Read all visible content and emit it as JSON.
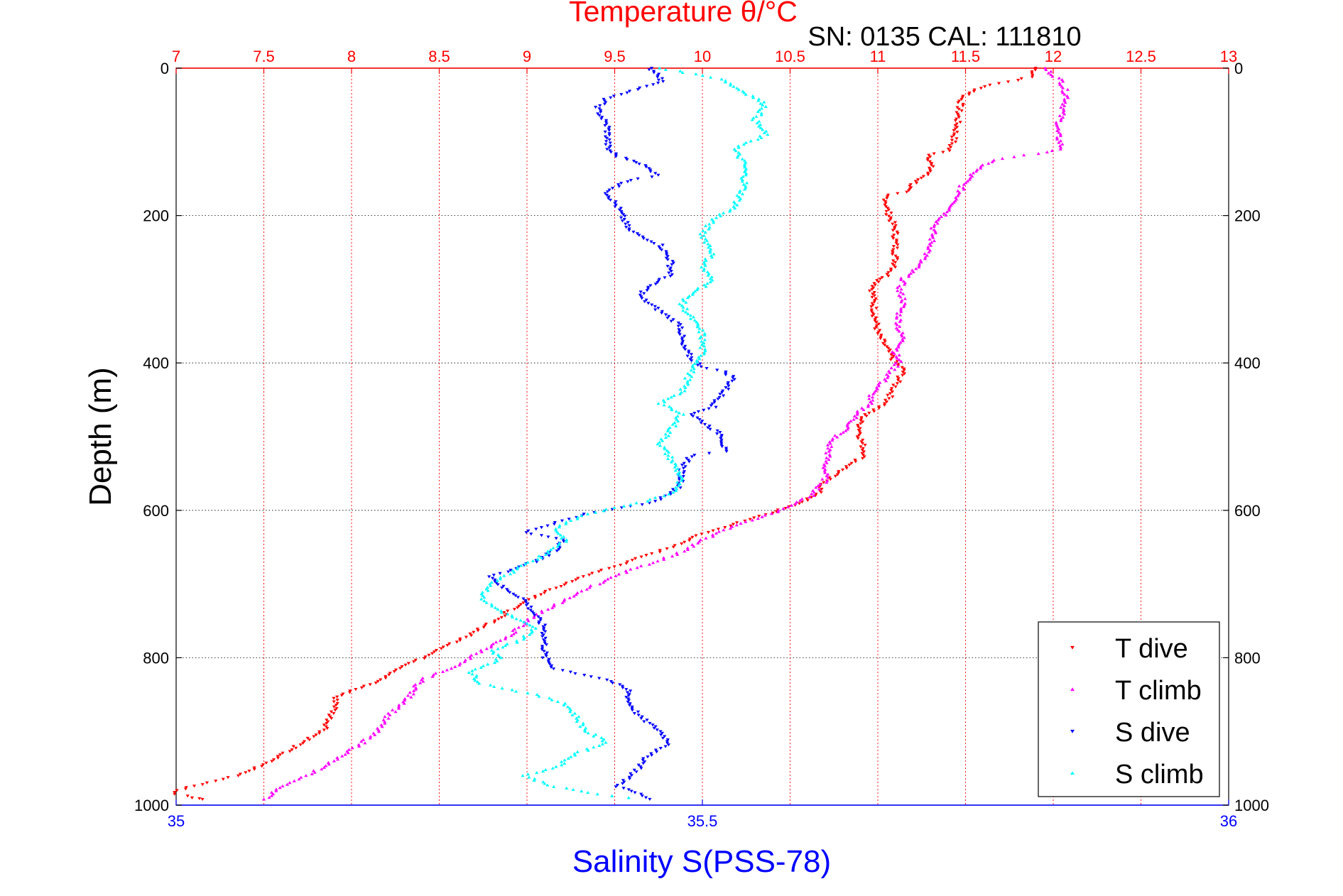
{
  "chart_data": {
    "type": "scatter",
    "title": "Temperature θ/°C",
    "subtitle": "SN: 0135  CAL: 111810",
    "xlabel": "Salinity S(PSS-78)",
    "ylabel": "Depth (m)",
    "grid": true,
    "legend_position": "bottom-right",
    "y_reversed": true,
    "ylim": [
      0,
      1000
    ],
    "temperature_axis": {
      "position": "top",
      "range": [
        7,
        13
      ],
      "ticks": [
        "7",
        "7.5",
        "8",
        "8.5",
        "9",
        "9.5",
        "10",
        "10.5",
        "11",
        "11.5",
        "12",
        "12.5",
        "13"
      ],
      "color": "#ff0000"
    },
    "salinity_axis": {
      "position": "bottom",
      "range": [
        35,
        36
      ],
      "ticks": [
        "35",
        "35.5",
        "36"
      ],
      "color": "#0000ff"
    },
    "depth_ticks": [
      "0",
      "200",
      "400",
      "600",
      "800",
      "1000"
    ],
    "series": [
      {
        "name": "T dive",
        "axis": "temperature",
        "color": "#ff0000",
        "marker": "triangle-down",
        "points": [
          [
            11.9,
            0
          ],
          [
            11.88,
            12
          ],
          [
            11.6,
            25
          ],
          [
            11.48,
            40
          ],
          [
            11.46,
            60
          ],
          [
            11.45,
            80
          ],
          [
            11.43,
            100
          ],
          [
            11.4,
            112
          ],
          [
            11.3,
            118
          ],
          [
            11.3,
            140
          ],
          [
            11.2,
            158
          ],
          [
            11.15,
            168
          ],
          [
            11.05,
            172
          ],
          [
            11.05,
            190
          ],
          [
            11.1,
            220
          ],
          [
            11.1,
            270
          ],
          [
            11.05,
            282
          ],
          [
            11.0,
            290
          ],
          [
            10.97,
            300
          ],
          [
            10.98,
            330
          ],
          [
            11.0,
            360
          ],
          [
            11.05,
            380
          ],
          [
            11.1,
            400
          ],
          [
            11.15,
            410
          ],
          [
            11.1,
            430
          ],
          [
            11.05,
            455
          ],
          [
            10.93,
            470
          ],
          [
            10.9,
            480
          ],
          [
            10.9,
            500
          ],
          [
            10.93,
            525
          ],
          [
            10.8,
            545
          ],
          [
            10.7,
            560
          ],
          [
            10.65,
            580
          ],
          [
            10.5,
            595
          ],
          [
            10.3,
            610
          ],
          [
            10.0,
            632
          ],
          [
            9.8,
            652
          ],
          [
            9.55,
            672
          ],
          [
            9.3,
            692
          ],
          [
            9.1,
            712
          ],
          [
            8.93,
            732
          ],
          [
            8.8,
            752
          ],
          [
            8.65,
            772
          ],
          [
            8.48,
            792
          ],
          [
            8.3,
            812
          ],
          [
            8.15,
            832
          ],
          [
            8.0,
            845
          ],
          [
            7.9,
            855
          ],
          [
            7.92,
            862
          ],
          [
            7.88,
            880
          ],
          [
            7.85,
            898
          ],
          [
            7.7,
            918
          ],
          [
            7.5,
            945
          ],
          [
            7.35,
            960
          ],
          [
            7.15,
            972
          ],
          [
            7.0,
            980
          ],
          [
            7.0,
            985
          ],
          [
            7.1,
            990
          ],
          [
            7.15,
            992
          ]
        ]
      },
      {
        "name": "T climb",
        "axis": "temperature",
        "color": "#ff00ff",
        "marker": "triangle-up",
        "points": [
          [
            11.95,
            0
          ],
          [
            12.05,
            18
          ],
          [
            12.08,
            40
          ],
          [
            12.05,
            60
          ],
          [
            12.02,
            85
          ],
          [
            12.05,
            110
          ],
          [
            11.85,
            118
          ],
          [
            11.65,
            125
          ],
          [
            11.55,
            140
          ],
          [
            11.48,
            160
          ],
          [
            11.45,
            180
          ],
          [
            11.4,
            195
          ],
          [
            11.32,
            215
          ],
          [
            11.3,
            245
          ],
          [
            11.22,
            270
          ],
          [
            11.15,
            285
          ],
          [
            11.12,
            302
          ],
          [
            11.15,
            315
          ],
          [
            11.12,
            335
          ],
          [
            11.12,
            355
          ],
          [
            11.15,
            370
          ],
          [
            11.1,
            385
          ],
          [
            11.12,
            398
          ],
          [
            11.05,
            420
          ],
          [
            10.97,
            440
          ],
          [
            10.95,
            455
          ],
          [
            10.88,
            470
          ],
          [
            10.82,
            490
          ],
          [
            10.73,
            505
          ],
          [
            10.72,
            520
          ],
          [
            10.7,
            540
          ],
          [
            10.7,
            560
          ],
          [
            10.62,
            580
          ],
          [
            10.45,
            600
          ],
          [
            10.2,
            620
          ],
          [
            10.0,
            640
          ],
          [
            9.85,
            660
          ],
          [
            9.6,
            680
          ],
          [
            9.4,
            700
          ],
          [
            9.3,
            712
          ],
          [
            9.15,
            730
          ],
          [
            9.0,
            750
          ],
          [
            8.9,
            770
          ],
          [
            8.75,
            790
          ],
          [
            8.6,
            810
          ],
          [
            8.4,
            830
          ],
          [
            8.35,
            845
          ],
          [
            8.3,
            862
          ],
          [
            8.2,
            880
          ],
          [
            8.15,
            898
          ],
          [
            8.05,
            918
          ],
          [
            7.75,
            960
          ],
          [
            7.62,
            972
          ],
          [
            7.55,
            985
          ],
          [
            7.5,
            992
          ]
        ]
      },
      {
        "name": "S dive",
        "axis": "salinity",
        "color": "#0000ff",
        "marker": "triangle-down",
        "points": [
          [
            35.45,
            0
          ],
          [
            35.46,
            10
          ],
          [
            35.46,
            20
          ],
          [
            35.41,
            40
          ],
          [
            35.4,
            55
          ],
          [
            35.41,
            80
          ],
          [
            35.41,
            110
          ],
          [
            35.42,
            120
          ],
          [
            35.44,
            128
          ],
          [
            35.45,
            138
          ],
          [
            35.46,
            145
          ],
          [
            35.44,
            150
          ],
          [
            35.42,
            158
          ],
          [
            35.41,
            170
          ],
          [
            35.42,
            190
          ],
          [
            35.43,
            220
          ],
          [
            35.46,
            240
          ],
          [
            35.47,
            262
          ],
          [
            35.47,
            280
          ],
          [
            35.45,
            295
          ],
          [
            35.44,
            310
          ],
          [
            35.46,
            330
          ],
          [
            35.48,
            350
          ],
          [
            35.48,
            375
          ],
          [
            35.49,
            395
          ],
          [
            35.5,
            405
          ],
          [
            35.52,
            412
          ],
          [
            35.53,
            420
          ],
          [
            35.52,
            440
          ],
          [
            35.51,
            460
          ],
          [
            35.49,
            470
          ],
          [
            35.51,
            490
          ],
          [
            35.52,
            500
          ],
          [
            35.52,
            520
          ],
          [
            35.49,
            525
          ],
          [
            35.48,
            545
          ],
          [
            35.48,
            565
          ],
          [
            35.47,
            578
          ],
          [
            35.45,
            590
          ],
          [
            35.39,
            605
          ],
          [
            35.33,
            630
          ],
          [
            35.37,
            640
          ],
          [
            35.36,
            655
          ],
          [
            35.34,
            670
          ],
          [
            35.3,
            690
          ],
          [
            35.31,
            705
          ],
          [
            35.33,
            720
          ],
          [
            35.34,
            740
          ],
          [
            35.35,
            760
          ],
          [
            35.35,
            780
          ],
          [
            35.35,
            800
          ],
          [
            35.36,
            815
          ],
          [
            35.41,
            830
          ],
          [
            35.43,
            845
          ],
          [
            35.43,
            860
          ],
          [
            35.44,
            880
          ],
          [
            35.46,
            900
          ],
          [
            35.47,
            918
          ],
          [
            35.45,
            930
          ],
          [
            35.44,
            950
          ],
          [
            35.43,
            962
          ],
          [
            35.42,
            975
          ],
          [
            35.44,
            985
          ],
          [
            35.45,
            992
          ]
        ]
      },
      {
        "name": "S climb",
        "axis": "salinity",
        "color": "#00ffff",
        "marker": "triangle-up",
        "points": [
          [
            35.46,
            0
          ],
          [
            35.5,
            10
          ],
          [
            35.52,
            15
          ],
          [
            35.53,
            25
          ],
          [
            35.55,
            40
          ],
          [
            35.56,
            50
          ],
          [
            35.55,
            70
          ],
          [
            35.56,
            90
          ],
          [
            35.53,
            110
          ],
          [
            35.54,
            130
          ],
          [
            35.54,
            160
          ],
          [
            35.53,
            190
          ],
          [
            35.51,
            205
          ],
          [
            35.5,
            225
          ],
          [
            35.51,
            250
          ],
          [
            35.5,
            270
          ],
          [
            35.51,
            290
          ],
          [
            35.49,
            305
          ],
          [
            35.48,
            320
          ],
          [
            35.49,
            340
          ],
          [
            35.5,
            360
          ],
          [
            35.5,
            390
          ],
          [
            35.49,
            410
          ],
          [
            35.48,
            440
          ],
          [
            35.46,
            455
          ],
          [
            35.48,
            470
          ],
          [
            35.47,
            490
          ],
          [
            35.46,
            510
          ],
          [
            35.47,
            530
          ],
          [
            35.48,
            555
          ],
          [
            35.47,
            578
          ],
          [
            35.44,
            590
          ],
          [
            35.39,
            605
          ],
          [
            35.36,
            625
          ],
          [
            35.37,
            640
          ],
          [
            35.35,
            660
          ],
          [
            35.33,
            675
          ],
          [
            35.3,
            700
          ],
          [
            35.29,
            718
          ],
          [
            35.3,
            730
          ],
          [
            35.32,
            745
          ],
          [
            35.34,
            760
          ],
          [
            35.33,
            775
          ],
          [
            35.3,
            790
          ],
          [
            35.31,
            800
          ],
          [
            35.28,
            820
          ],
          [
            35.29,
            835
          ],
          [
            35.34,
            850
          ],
          [
            35.37,
            862
          ],
          [
            35.38,
            880
          ],
          [
            35.39,
            900
          ],
          [
            35.41,
            915
          ],
          [
            35.38,
            930
          ],
          [
            35.36,
            950
          ],
          [
            35.33,
            960
          ],
          [
            35.36,
            975
          ],
          [
            35.4,
            985
          ],
          [
            35.43,
            990
          ]
        ]
      }
    ]
  }
}
